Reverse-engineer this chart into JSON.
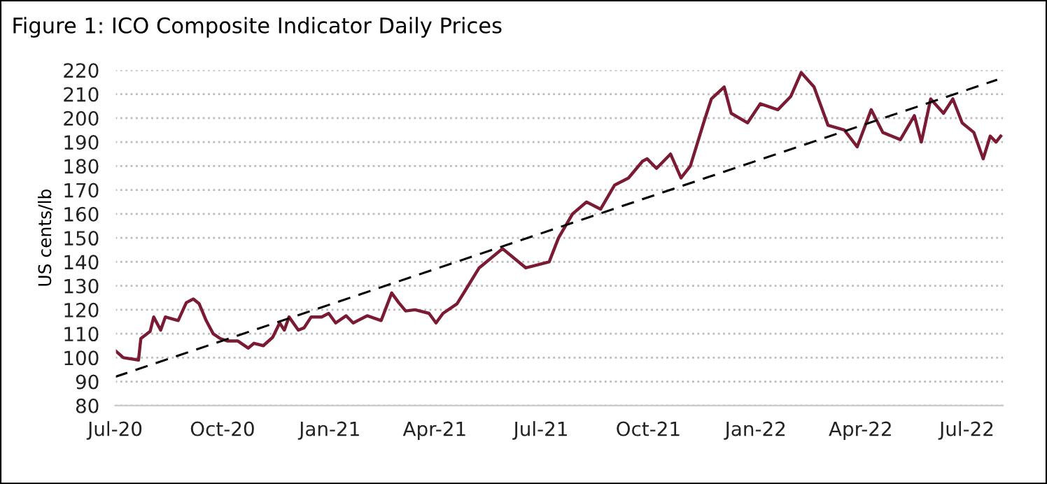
{
  "chart_data": {
    "type": "line",
    "title": "Figure 1: ICO Composite Indicator Daily Prices",
    "ylabel": "US cents/lb",
    "series": [
      {
        "color": "#7a1a33",
        "x": [
          "2020-07-01",
          "2020-07-08",
          "2020-07-21",
          "2020-07-23",
          "2020-07-31",
          "2020-08-03",
          "2020-08-09",
          "2020-08-13",
          "2020-08-24",
          "2020-08-31",
          "2020-09-06",
          "2020-09-11",
          "2020-09-17",
          "2020-09-23",
          "2020-09-29",
          "2020-10-05",
          "2020-10-14",
          "2020-10-23",
          "2020-10-28",
          "2020-11-05",
          "2020-11-13",
          "2020-11-19",
          "2020-11-23",
          "2020-11-27",
          "2020-12-05",
          "2020-12-10",
          "2020-12-16",
          "2020-12-25",
          "2020-12-31",
          "2021-01-06",
          "2021-01-15",
          "2021-01-21",
          "2021-02-02",
          "2021-02-14",
          "2021-02-23",
          "2021-03-01",
          "2021-03-07",
          "2021-03-15",
          "2021-03-27",
          "2021-04-02",
          "2021-04-08",
          "2021-04-20",
          "2021-04-27",
          "2021-05-09",
          "2021-05-29",
          "2021-06-18",
          "2021-07-08",
          "2021-07-16",
          "2021-07-28",
          "2021-08-09",
          "2021-08-21",
          "2021-09-02",
          "2021-09-14",
          "2021-09-26",
          "2021-09-30",
          "2021-10-08",
          "2021-10-20",
          "2021-10-29",
          "2021-11-06",
          "2021-11-18",
          "2021-11-24",
          "2021-12-05",
          "2021-12-11",
          "2021-12-25",
          "2022-01-05",
          "2022-01-20",
          "2022-01-31",
          "2022-02-09",
          "2022-02-20",
          "2022-03-04",
          "2022-03-18",
          "2022-03-29",
          "2022-04-10",
          "2022-04-20",
          "2022-05-05",
          "2022-05-17",
          "2022-05-23",
          "2022-05-31",
          "2022-06-11",
          "2022-06-19",
          "2022-06-27",
          "2022-07-07",
          "2022-07-15",
          "2022-07-21",
          "2022-07-26",
          "2022-07-30"
        ],
        "values": [
          103,
          100,
          99,
          108,
          111,
          117,
          111.5,
          117,
          115.5,
          123,
          124.5,
          122.5,
          115.5,
          110,
          108,
          107,
          107,
          104,
          106,
          105,
          108.5,
          114.5,
          111.5,
          117,
          111.5,
          112.5,
          117,
          117,
          118.5,
          114.5,
          117.5,
          114.5,
          117.5,
          115.5,
          127,
          123,
          119.5,
          120,
          118.5,
          114.5,
          118.5,
          122.5,
          128,
          137.5,
          145.5,
          137.5,
          140,
          150,
          160,
          165,
          162,
          172,
          175,
          182,
          183,
          179,
          185,
          175,
          180,
          199,
          208,
          213,
          202,
          198,
          206,
          203.5,
          209,
          219,
          213,
          197,
          195,
          188,
          203.5,
          194,
          191,
          201,
          190,
          208,
          202,
          208,
          198,
          194,
          183,
          192.5,
          190,
          192.5
        ]
      },
      {
        "type": "line",
        "color": "#000000",
        "line_style": "dashed",
        "x": [
          "2020-07-01",
          "2022-07-27"
        ],
        "values": [
          92,
          216
        ]
      }
    ],
    "xlim": [
      "2020-07-01",
      "2022-08-01"
    ],
    "xticks": [
      {
        "value": "2020-07-01",
        "label": "Jul-20"
      },
      {
        "value": "2020-10-01",
        "label": "Oct-20"
      },
      {
        "value": "2021-01-01",
        "label": "Jan-21"
      },
      {
        "value": "2021-04-01",
        "label": "Apr-21"
      },
      {
        "value": "2021-07-01",
        "label": "Jul-21"
      },
      {
        "value": "2021-10-01",
        "label": "Oct-21"
      },
      {
        "value": "2022-01-01",
        "label": "Jan-22"
      },
      {
        "value": "2022-04-01",
        "label": "Apr-22"
      },
      {
        "value": "2022-07-01",
        "label": "Jul-22"
      }
    ],
    "ylim": [
      80,
      220
    ],
    "yticks": [
      80,
      90,
      100,
      110,
      120,
      130,
      140,
      150,
      160,
      170,
      180,
      190,
      200,
      210,
      220
    ],
    "grid": "y",
    "line_style": "solid",
    "legend": false
  }
}
